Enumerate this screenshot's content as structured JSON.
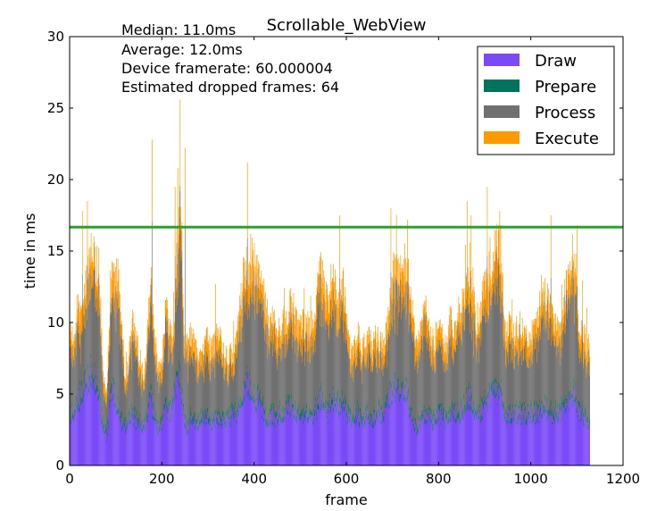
{
  "chart_data": {
    "type": "bar",
    "stacked": true,
    "title": "Scrollable_WebView",
    "xlabel": "frame",
    "ylabel": "time in ms",
    "xlim": [
      0,
      1200
    ],
    "ylim": [
      0,
      30
    ],
    "x_ticks": [
      "0",
      "200",
      "400",
      "600",
      "800",
      "1000",
      "1200"
    ],
    "y_ticks": [
      "0",
      "5",
      "10",
      "15",
      "20",
      "25",
      "30"
    ],
    "frame_count": 1128,
    "annotations": [
      "Median: 11.0ms",
      "Average: 12.0ms",
      "Device framerate: 60.000004",
      "Estimated dropped frames: 64"
    ],
    "threshold": {
      "value": 16.67,
      "color": "#2ca02c"
    },
    "legend_position": "top-right",
    "series": [
      {
        "name": "Draw",
        "color": "#7b4af7"
      },
      {
        "name": "Prepare",
        "color": "#00735d"
      },
      {
        "name": "Process",
        "color": "#707070"
      },
      {
        "name": "Execute",
        "color": "#ff9900"
      }
    ],
    "profile_notes": "Per-frame totals in ms, sampled every 8 frames (frame index = key*8)",
    "total_samples": {
      "0": 9.5,
      "8": 9.0,
      "16": 11.0,
      "24": 10.5,
      "32": 12.0,
      "40": 13.5,
      "48": 15.0,
      "56": 14.0,
      "64": 13.5,
      "72": 6.0,
      "80": 5.0,
      "88": 12.5,
      "96": 13.5,
      "104": 13.0,
      "112": 10.0,
      "120": 6.0,
      "128": 7.5,
      "136": 10.0,
      "144": 8.5,
      "152": 7.5,
      "160": 6.0,
      "168": 9.0,
      "176": 13.0,
      "184": 9.0,
      "192": 6.5,
      "200": 7.0,
      "208": 11.5,
      "216": 9.5,
      "224": 9.0,
      "232": 15.0,
      "240": 19.0,
      "248": 9.0,
      "256": 8.0,
      "264": 9.5,
      "272": 8.0,
      "280": 7.5,
      "288": 7.5,
      "296": 9.0,
      "304": 8.0,
      "312": 8.5,
      "320": 9.0,
      "328": 8.5,
      "336": 7.5,
      "344": 7.5,
      "352": 8.0,
      "360": 8.5,
      "368": 11.0,
      "376": 13.0,
      "384": 14.0,
      "392": 13.0,
      "400": 14.0,
      "408": 13.5,
      "416": 13.0,
      "424": 11.0,
      "432": 10.0,
      "440": 10.5,
      "448": 9.0,
      "456": 9.5,
      "464": 10.0,
      "472": 10.5,
      "480": 11.5,
      "488": 10.5,
      "496": 9.5,
      "504": 10.0,
      "512": 9.5,
      "520": 9.5,
      "528": 10.0,
      "536": 12.0,
      "544": 13.5,
      "552": 13.0,
      "560": 11.0,
      "568": 13.5,
      "576": 12.5,
      "584": 11.0,
      "592": 12.5,
      "600": 10.0,
      "608": 8.0,
      "616": 8.0,
      "624": 9.5,
      "632": 8.0,
      "640": 8.5,
      "648": 9.0,
      "656": 8.0,
      "664": 9.0,
      "672": 8.5,
      "680": 8.5,
      "688": 9.5,
      "696": 12.5,
      "704": 13.5,
      "712": 13.0,
      "720": 13.5,
      "728": 14.0,
      "736": 13.0,
      "744": 10.0,
      "752": 8.0,
      "760": 9.5,
      "768": 11.5,
      "776": 10.0,
      "784": 9.0,
      "792": 8.5,
      "800": 10.0,
      "808": 9.5,
      "816": 8.0,
      "824": 10.5,
      "832": 9.0,
      "840": 10.5,
      "848": 11.0,
      "856": 12.0,
      "864": 13.0,
      "872": 12.5,
      "880": 10.0,
      "888": 10.5,
      "896": 12.0,
      "904": 12.5,
      "912": 13.5,
      "920": 15.0,
      "928": 15.5,
      "936": 14.0,
      "944": 9.0,
      "952": 10.0,
      "960": 9.0,
      "968": 9.5,
      "976": 10.0,
      "984": 9.0,
      "992": 9.0,
      "1000": 9.0,
      "1008": 9.5,
      "1016": 10.5,
      "1024": 12.5,
      "1032": 12.0,
      "1040": 11.0,
      "1048": 10.0,
      "1056": 9.5,
      "1064": 9.5,
      "1072": 11.5,
      "1080": 13.0,
      "1088": 15.0,
      "1096": 14.0,
      "1104": 9.0,
      "1112": 9.5,
      "1120": 8.5
    },
    "draw_samples": {
      "0": 3.5,
      "8": 3.5,
      "16": 4.0,
      "24": 5.0,
      "32": 5.5,
      "40": 6.0,
      "48": 6.5,
      "56": 6.0,
      "64": 4.5,
      "72": 2.5,
      "80": 2.0,
      "88": 5.0,
      "96": 5.0,
      "104": 4.0,
      "112": 3.0,
      "120": 2.5,
      "128": 3.0,
      "136": 3.5,
      "144": 3.0,
      "152": 3.0,
      "160": 2.5,
      "168": 3.5,
      "176": 5.0,
      "184": 3.0,
      "192": 2.5,
      "200": 3.0,
      "208": 4.0,
      "216": 3.5,
      "224": 4.0,
      "232": 6.0,
      "240": 6.0,
      "248": 3.0,
      "256": 2.5,
      "264": 3.5,
      "272": 3.0,
      "280": 3.0,
      "288": 3.0,
      "296": 3.5,
      "304": 3.0,
      "312": 3.0,
      "320": 3.5,
      "328": 3.0,
      "336": 3.0,
      "344": 3.0,
      "352": 3.5,
      "360": 3.5,
      "368": 4.0,
      "376": 5.0,
      "384": 6.0,
      "392": 5.0,
      "400": 4.5,
      "408": 4.5,
      "416": 4.0,
      "424": 3.5,
      "432": 3.0,
      "440": 3.5,
      "448": 3.0,
      "456": 3.5,
      "464": 3.5,
      "472": 4.0,
      "480": 4.0,
      "488": 3.5,
      "496": 3.5,
      "504": 3.5,
      "512": 3.5,
      "520": 3.5,
      "528": 3.5,
      "536": 4.0,
      "544": 4.5,
      "552": 4.5,
      "560": 3.5,
      "568": 4.5,
      "576": 4.5,
      "584": 4.0,
      "592": 4.5,
      "600": 3.5,
      "608": 3.0,
      "616": 3.0,
      "624": 3.5,
      "632": 3.0,
      "640": 3.0,
      "648": 3.5,
      "656": 3.0,
      "664": 3.5,
      "672": 3.5,
      "680": 3.5,
      "688": 4.0,
      "696": 5.0,
      "704": 5.5,
      "712": 5.0,
      "720": 5.0,
      "728": 5.5,
      "736": 4.0,
      "744": 3.0,
      "752": 2.5,
      "760": 3.0,
      "768": 3.5,
      "776": 3.5,
      "784": 3.0,
      "792": 3.0,
      "800": 3.5,
      "808": 3.5,
      "816": 3.0,
      "824": 3.5,
      "832": 3.5,
      "840": 3.5,
      "848": 3.5,
      "856": 4.0,
      "864": 4.5,
      "872": 4.5,
      "880": 3.5,
      "888": 3.5,
      "896": 4.0,
      "904": 4.5,
      "912": 5.0,
      "920": 5.0,
      "928": 5.0,
      "936": 5.0,
      "944": 3.0,
      "952": 3.5,
      "960": 3.5,
      "968": 3.5,
      "976": 3.5,
      "984": 3.5,
      "992": 3.5,
      "1000": 3.5,
      "1008": 3.5,
      "1016": 3.5,
      "1024": 4.0,
      "1032": 4.0,
      "1040": 3.5,
      "1048": 3.5,
      "1056": 3.5,
      "1064": 3.5,
      "1072": 4.0,
      "1080": 4.5,
      "1088": 5.0,
      "1096": 5.0,
      "1104": 3.5,
      "1112": 3.5,
      "1120": 3.0
    },
    "spikes": [
      {
        "frame": 27,
        "value": 17.8
      },
      {
        "frame": 38,
        "value": 18.5
      },
      {
        "frame": 178,
        "value": 22.8
      },
      {
        "frame": 228,
        "value": 19.5
      },
      {
        "frame": 234,
        "value": 20.8
      },
      {
        "frame": 239,
        "value": 25.6
      },
      {
        "frame": 250,
        "value": 22.2
      },
      {
        "frame": 385,
        "value": 21.2
      },
      {
        "frame": 585,
        "value": 17.5
      },
      {
        "frame": 696,
        "value": 18.0
      },
      {
        "frame": 732,
        "value": 17.2
      },
      {
        "frame": 862,
        "value": 18.5
      },
      {
        "frame": 870,
        "value": 17.5
      },
      {
        "frame": 905,
        "value": 19.5
      },
      {
        "frame": 932,
        "value": 17.8
      },
      {
        "frame": 1043,
        "value": 17.5
      },
      {
        "frame": 1100,
        "value": 16.8
      }
    ]
  }
}
